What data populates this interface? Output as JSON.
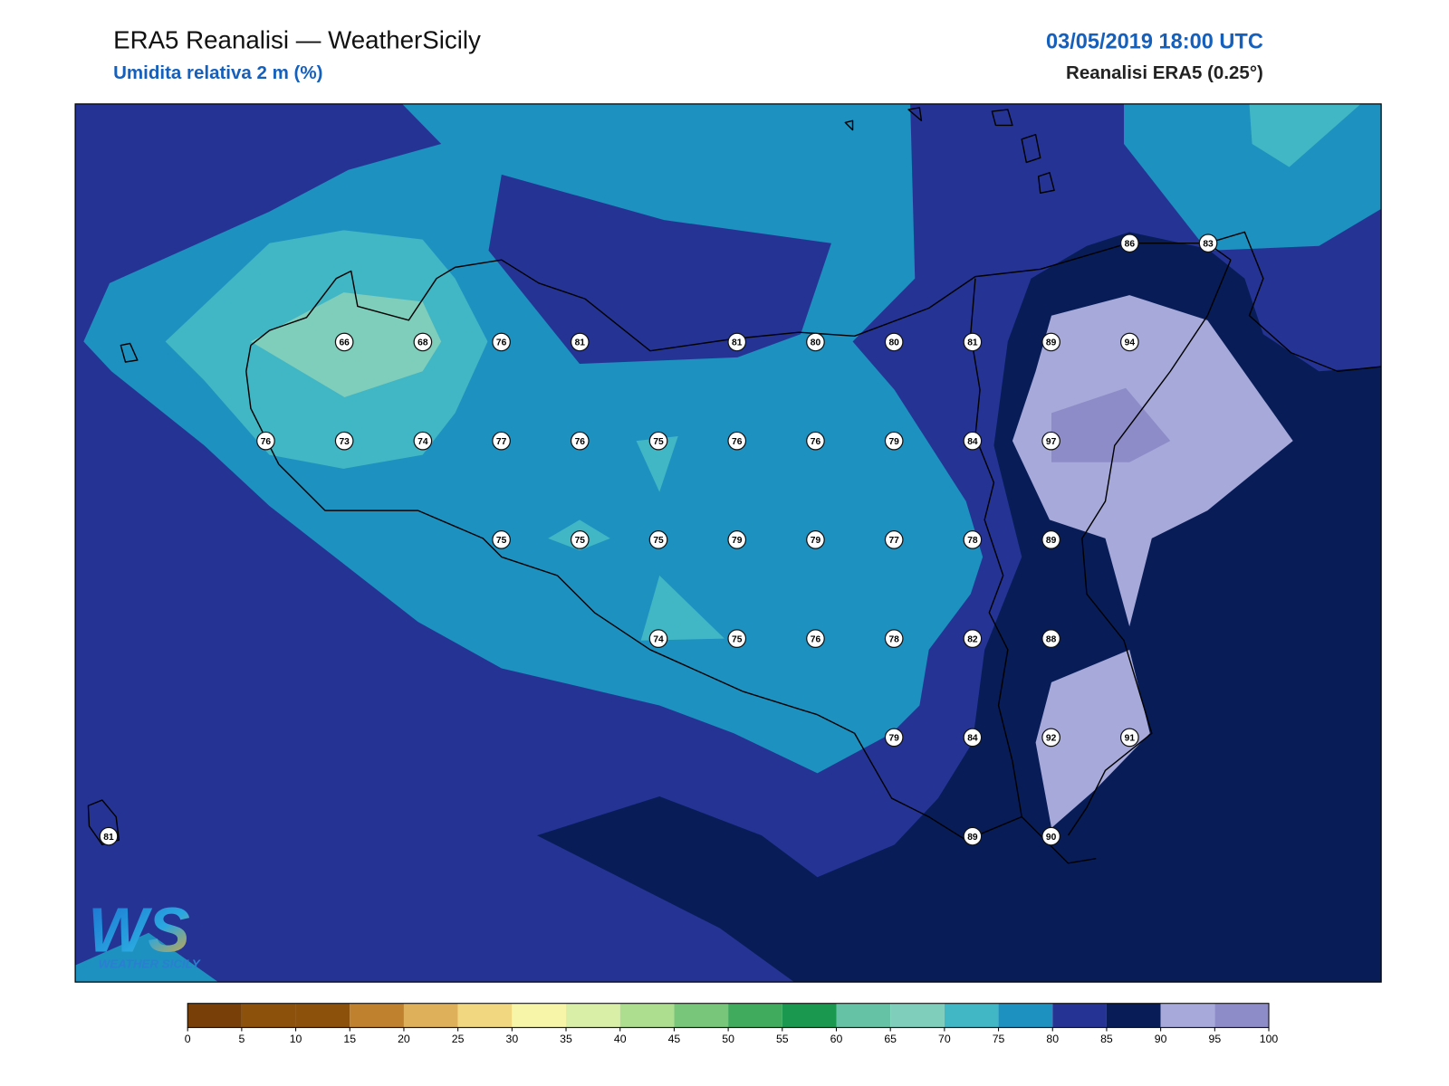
{
  "header": {
    "title": "ERA5 Reanalisi — WeatherSicily",
    "subtitle": "Umidita relativa 2 m (%)",
    "datetime": "03/05/2019 18:00 UTC",
    "source": "Reanalisi ERA5 (0.25°)"
  },
  "stations": [
    [
      null,
      null,
      null,
      null,
      null,
      null,
      null,
      null,
      null,
      null,
      null,
      null,
      null,
      86,
      83
    ],
    [
      null,
      null,
      null,
      66,
      68,
      76,
      81,
      null,
      81,
      80,
      80,
      81,
      89,
      94,
      null
    ],
    [
      null,
      null,
      76,
      73,
      74,
      77,
      76,
      75,
      76,
      76,
      79,
      84,
      97,
      null,
      null
    ],
    [
      null,
      null,
      null,
      null,
      null,
      75,
      75,
      75,
      79,
      79,
      77,
      78,
      89,
      null,
      null
    ],
    [
      null,
      null,
      null,
      null,
      null,
      null,
      null,
      74,
      75,
      76,
      78,
      82,
      88,
      null,
      null
    ],
    [
      null,
      null,
      null,
      null,
      null,
      null,
      null,
      null,
      null,
      null,
      79,
      84,
      92,
      91,
      null
    ],
    [
      81,
      null,
      null,
      null,
      null,
      null,
      null,
      null,
      null,
      null,
      null,
      89,
      90,
      null,
      null
    ]
  ],
  "colorbar": {
    "ticks": [
      0,
      5,
      10,
      15,
      20,
      25,
      30,
      35,
      40,
      45,
      50,
      55,
      60,
      65,
      70,
      75,
      80,
      85,
      90,
      95,
      100
    ],
    "colors": [
      "#784008",
      "#8c510a",
      "#8c510a",
      "#bf812d",
      "#dfb05a",
      "#f1d77f",
      "#f6f5a8",
      "#d9efa8",
      "#addd8e",
      "#78c679",
      "#41ab5d",
      "#1a9850",
      "#66c2a4",
      "#7fcdbb",
      "#41b6c4",
      "#1d91c0",
      "#253494",
      "#081d58",
      "#a6a9da",
      "#8e8cc8"
    ]
  },
  "logo": {
    "mark": "WS",
    "text": "WEATHER SICILY"
  }
}
